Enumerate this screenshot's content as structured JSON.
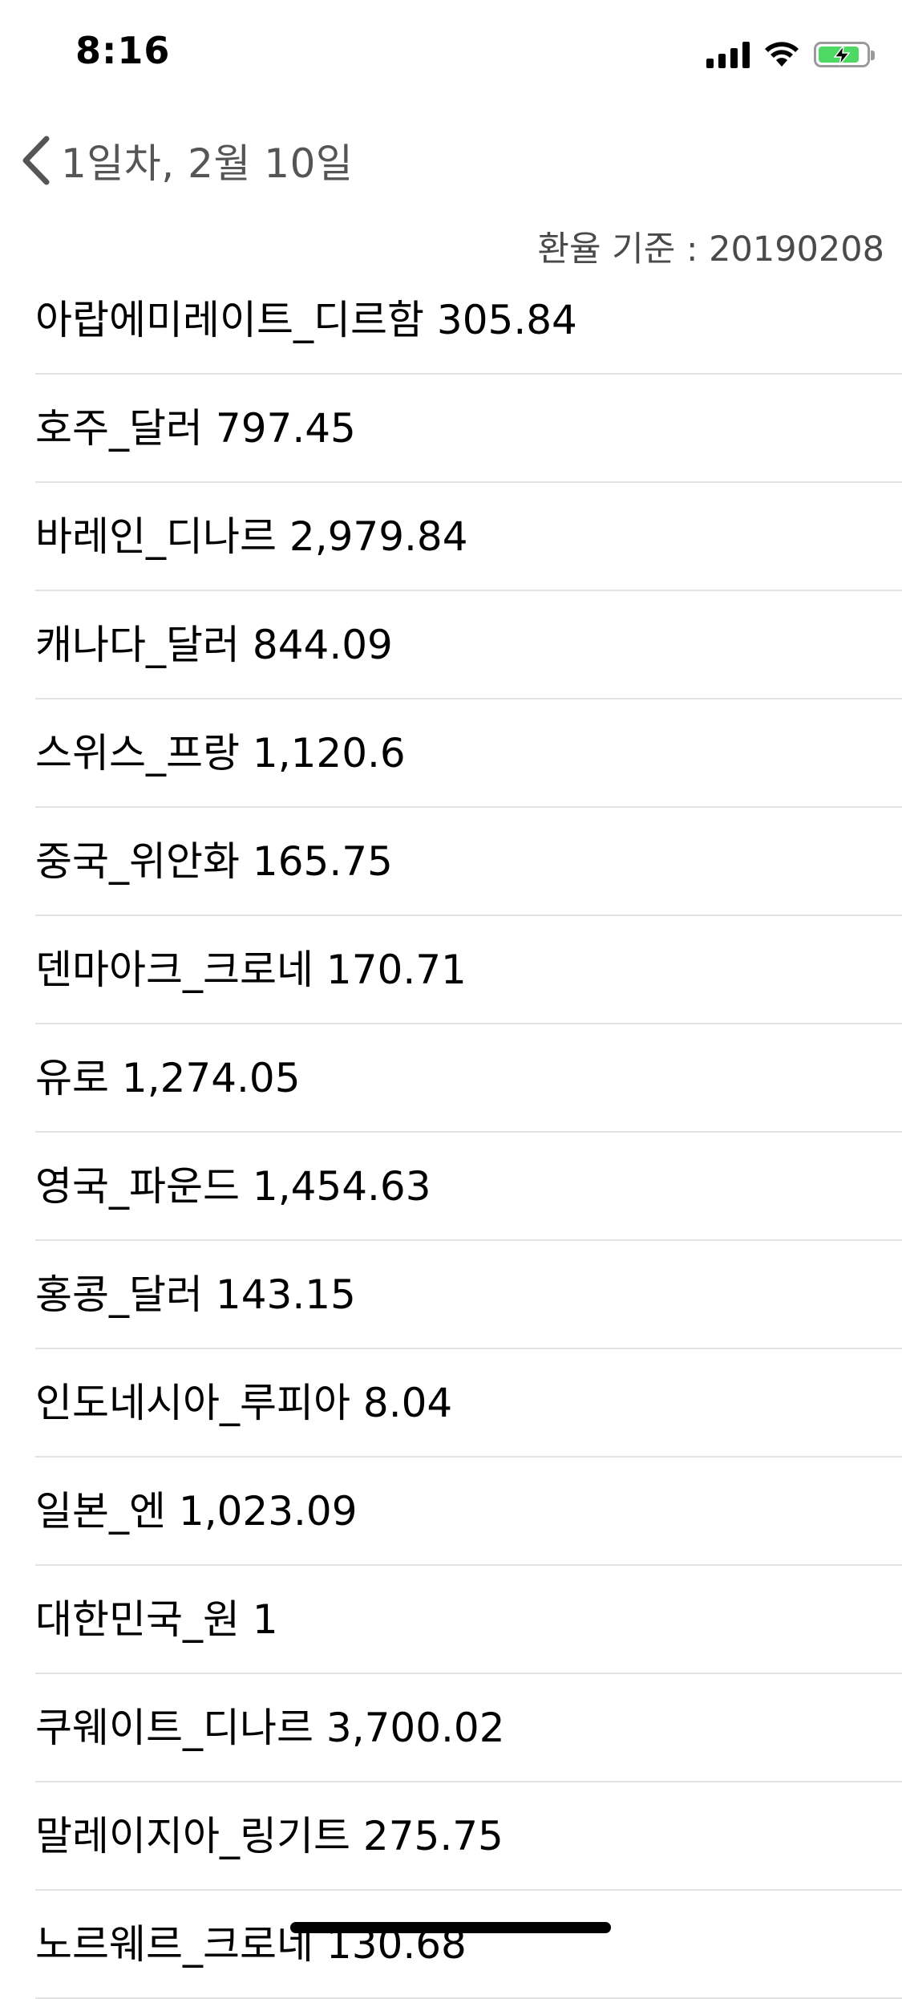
{
  "status_bar": {
    "time": "8:16",
    "icons": [
      "cellular-signal-icon",
      "wifi-icon",
      "battery-charging-icon"
    ],
    "battery_color": "#4cd964"
  },
  "nav": {
    "back_label": "1일차, 2월 10일",
    "back_icon": "chevron-left-icon"
  },
  "rate_basis": "환율 기준 : 20190208",
  "currencies": [
    "아랍에미레이트_디르함 305.84",
    "호주_달러 797.45",
    "바레인_디나르 2,979.84",
    "캐나다_달러 844.09",
    "스위스_프랑 1,120.6",
    "중국_위안화 165.75",
    "덴마아크_크로네 170.71",
    "유로 1,274.05",
    "영국_파운드 1,454.63",
    "홍콩_달러 143.15",
    "인도네시아_루피아 8.04",
    "일본_엔 1,023.09",
    "대한민국_원 1",
    "쿠웨이트_디나르 3,700.02",
    "말레이지아_링기트 275.75",
    "노르웨르_크로네 130.68"
  ]
}
